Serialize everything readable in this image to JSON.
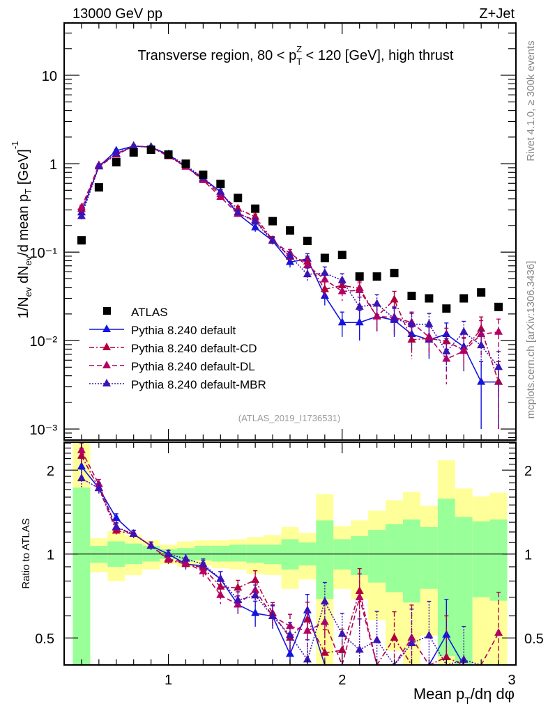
{
  "header": {
    "left_label": "13000 GeV pp",
    "right_label": "Z+Jet"
  },
  "side_labels": {
    "rivet": "Rivet 4.1.0, ≥ 300k events",
    "mcplots": "mcplots.cern.ch [arXiv:1306.3436]"
  },
  "chart_data": [
    {
      "type": "scatter",
      "panel": "main",
      "title": "Transverse region, 80 < p_T^Z < 120 [GeV], high thrust",
      "ylabel": "1/N_ev dN_ev/d mean p_T [GeV]^-1",
      "xlabel": "",
      "yscale": "log",
      "xlim": [
        0.4,
        3.0
      ],
      "ylim": [
        0.00075,
        39
      ],
      "yticks": [
        {
          "value": 10,
          "label": "10"
        },
        {
          "value": 1,
          "label": "1"
        },
        {
          "value": 0.1,
          "label": "10⁻¹"
        },
        {
          "value": 0.01,
          "label": "10⁻²"
        },
        {
          "value": 0.001,
          "label": "10⁻³"
        }
      ],
      "watermark": "(ATLAS_2019_I1736531)",
      "legend_position": "bottom-left",
      "x": [
        0.5,
        0.6,
        0.7,
        0.8,
        0.9,
        1.0,
        1.1,
        1.2,
        1.3,
        1.4,
        1.5,
        1.6,
        1.7,
        1.8,
        1.9,
        2.0,
        2.1,
        2.2,
        2.3,
        2.4,
        2.5,
        2.6,
        2.7,
        2.8,
        2.9
      ],
      "series": [
        {
          "name": "ATLAS",
          "style": "data",
          "color": "#000000",
          "values": [
            0.136,
            0.54,
            1.04,
            1.34,
            1.44,
            1.27,
            1.0,
            0.75,
            0.59,
            0.41,
            0.31,
            0.224,
            0.176,
            0.134,
            0.086,
            0.093,
            0.053,
            0.053,
            0.058,
            0.032,
            0.03,
            0.023,
            0.03,
            0.035,
            0.024
          ]
        },
        {
          "name": "Pythia 8.240 default",
          "style": "solid",
          "color": "#1414e0",
          "values": [
            0.28,
            0.93,
            1.4,
            1.58,
            1.54,
            1.27,
            0.92,
            0.68,
            0.48,
            0.27,
            0.19,
            0.134,
            0.077,
            0.084,
            0.032,
            0.016,
            0.016,
            0.0187,
            0.017,
            0.0118,
            0.0102,
            0.0118,
            0.0085,
            0.0034,
            0.0034
          ],
          "errors": [
            0.02,
            0.04,
            0.05,
            0.05,
            0.05,
            0.04,
            0.04,
            0.03,
            0.03,
            0.02,
            0.02,
            0.012,
            0.01,
            0.012,
            0.007,
            0.005,
            0.006,
            0.006,
            0.006,
            0.004,
            0.004,
            0.004,
            0.004,
            0.0024,
            0.0024
          ]
        },
        {
          "name": "Pythia 8.240 default-CD",
          "style": "dashdot",
          "color": "#b0003c",
          "values": [
            0.306,
            0.93,
            1.26,
            1.58,
            1.54,
            1.21,
            0.92,
            0.67,
            0.45,
            0.31,
            0.25,
            0.137,
            0.088,
            0.078,
            0.038,
            0.042,
            0.039,
            0.0187,
            0.029,
            0.0102,
            0.0106,
            0.0098,
            0.0078,
            0.0135,
            0.0034
          ],
          "errors": [
            0.02,
            0.04,
            0.05,
            0.05,
            0.05,
            0.04,
            0.04,
            0.03,
            0.03,
            0.02,
            0.02,
            0.013,
            0.01,
            0.012,
            0.008,
            0.008,
            0.008,
            0.006,
            0.007,
            0.004,
            0.004,
            0.004,
            0.003,
            0.005,
            0.0024
          ]
        },
        {
          "name": "Pythia 8.240 default-DL",
          "style": "dashed",
          "color": "#b40064",
          "values": [
            0.32,
            0.96,
            1.29,
            1.58,
            1.54,
            1.22,
            0.93,
            0.65,
            0.42,
            0.27,
            0.23,
            0.134,
            0.097,
            0.071,
            0.049,
            0.036,
            0.037,
            0.0187,
            0.0183,
            0.016,
            0.011,
            0.0062,
            0.0076,
            0.0118,
            0.0125
          ],
          "errors": [
            0.02,
            0.04,
            0.05,
            0.05,
            0.05,
            0.04,
            0.04,
            0.03,
            0.03,
            0.02,
            0.02,
            0.013,
            0.01,
            0.012,
            0.009,
            0.008,
            0.008,
            0.006,
            0.006,
            0.005,
            0.004,
            0.003,
            0.003,
            0.005,
            0.005
          ]
        },
        {
          "name": "Pythia 8.240 default-MBR",
          "style": "dotted",
          "color": "#3c14b4",
          "values": [
            0.254,
            0.93,
            1.3,
            1.58,
            1.54,
            1.27,
            0.96,
            0.69,
            0.48,
            0.28,
            0.22,
            0.134,
            0.09,
            0.056,
            0.058,
            0.048,
            0.024,
            0.026,
            0.0177,
            0.0153,
            0.0153,
            0.0075,
            0.0125,
            0.0088,
            0.005
          ],
          "errors": [
            0.02,
            0.04,
            0.05,
            0.05,
            0.05,
            0.04,
            0.04,
            0.03,
            0.03,
            0.02,
            0.02,
            0.013,
            0.01,
            0.01,
            0.01,
            0.009,
            0.007,
            0.007,
            0.006,
            0.005,
            0.005,
            0.003,
            0.004,
            0.004,
            0.0025
          ]
        }
      ]
    },
    {
      "type": "scatter",
      "panel": "ratio",
      "ylabel": "Ratio to ATLAS",
      "xlabel": "Mean p_T/dη dφ",
      "yscale": "log",
      "xlim": [
        0.4,
        3.0
      ],
      "ylim": [
        0.4,
        2.52
      ],
      "yticks": [
        {
          "value": 2,
          "label": "2"
        },
        {
          "value": 1,
          "label": "1"
        },
        {
          "value": 0.5,
          "label": "0.5"
        }
      ],
      "xticks": [
        {
          "value": 1,
          "label": "1"
        },
        {
          "value": 2,
          "label": "2"
        },
        {
          "value": 3,
          "label": "3"
        }
      ],
      "bands": {
        "bin_edges": [
          0.45,
          0.55,
          0.65,
          0.75,
          0.85,
          0.95,
          1.05,
          1.15,
          1.25,
          1.35,
          1.45,
          1.55,
          1.65,
          1.75,
          1.85,
          1.95,
          2.05,
          2.15,
          2.25,
          2.35,
          2.45,
          2.55,
          2.65,
          2.75,
          2.85,
          2.95
        ],
        "green_hi": [
          1.73,
          1.07,
          1.11,
          1.09,
          1.07,
          1.04,
          1.05,
          1.07,
          1.07,
          1.08,
          1.08,
          1.08,
          1.13,
          1.1,
          1.32,
          1.13,
          1.16,
          1.22,
          1.28,
          1.33,
          1.25,
          1.58,
          1.36,
          1.31,
          1.33
        ],
        "green_lo": [
          0.4,
          0.93,
          0.9,
          0.92,
          0.94,
          0.96,
          0.94,
          0.95,
          0.94,
          0.94,
          0.93,
          0.92,
          0.88,
          0.91,
          0.69,
          0.88,
          0.84,
          0.79,
          0.73,
          0.67,
          0.75,
          0.43,
          0.4,
          0.7,
          0.68
        ],
        "yellow_hi": [
          2.52,
          1.14,
          1.21,
          1.17,
          1.12,
          1.08,
          1.11,
          1.12,
          1.12,
          1.13,
          1.15,
          1.17,
          1.25,
          1.19,
          1.64,
          1.26,
          1.32,
          1.43,
          1.56,
          1.67,
          1.49,
          2.17,
          1.72,
          1.61,
          1.66
        ],
        "yellow_lo": [
          0.4,
          0.86,
          0.8,
          0.84,
          0.88,
          0.92,
          0.9,
          0.91,
          0.89,
          0.88,
          0.85,
          0.84,
          0.75,
          0.81,
          0.4,
          0.75,
          0.69,
          0.58,
          0.45,
          0.4,
          0.51,
          0.4,
          0.4,
          0.4,
          0.4
        ],
        "green_color": "#99ff99",
        "yellow_color": "#ffff99"
      }
    }
  ]
}
